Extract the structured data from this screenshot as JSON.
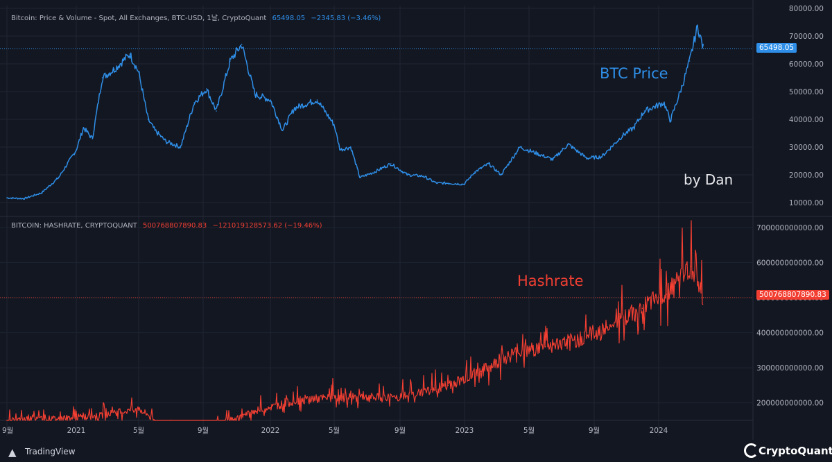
{
  "colors": {
    "background": "#131722",
    "btc": "#2f8fe8",
    "hashrate": "#f23f32",
    "grid": "#1f2433",
    "text": "#b2b5be"
  },
  "top_header": {
    "title": "Bitcoin: Price & Volume - Spot, All Exchanges, BTC-USD, 1날, CryptoQuant",
    "value": "65498.05",
    "change": "−2345.83 (−3.46%)"
  },
  "bottom_header": {
    "title": "BITCOIN: HASHRATE, CRYPTOQUANT",
    "value": "500768807890.83",
    "change": "−121019128573.62 (−19.46%)"
  },
  "annotations": {
    "btc_label": "BTC Price",
    "hashrate_label": "Hashrate",
    "author": "by Dan"
  },
  "price_tags": {
    "btc": "65498.05",
    "hashrate": "500768807890.83"
  },
  "footer": {
    "left_brand": "TradingView",
    "right_brand": "CryptoQuant"
  },
  "chart_data": [
    {
      "type": "line",
      "name": "BTC Price",
      "x_axis": [
        "9월",
        "2021",
        "5월",
        "9월",
        "2022",
        "5월",
        "9월",
        "2023",
        "5월",
        "9월",
        "2024"
      ],
      "y_ticks": [
        "80000.00",
        "70000.00",
        "60000.00",
        "50000.00",
        "40000.00",
        "30000.00",
        "20000.00",
        "10000.00"
      ],
      "ylim": [
        6000,
        81000
      ],
      "x": [
        "2020-09-01",
        "2020-10-01",
        "2020-11-01",
        "2020-12-01",
        "2021-01-01",
        "2021-01-15",
        "2021-02-01",
        "2021-02-20",
        "2021-03-15",
        "2021-04-14",
        "2021-05-01",
        "2021-05-19",
        "2021-06-01",
        "2021-06-22",
        "2021-07-20",
        "2021-08-15",
        "2021-09-07",
        "2021-09-25",
        "2021-10-20",
        "2021-11-10",
        "2021-12-04",
        "2022-01-01",
        "2022-01-24",
        "2022-02-15",
        "2022-03-30",
        "2022-05-01",
        "2022-05-12",
        "2022-06-01",
        "2022-06-18",
        "2022-07-15",
        "2022-08-15",
        "2022-09-15",
        "2022-10-15",
        "2022-11-09",
        "2022-12-01",
        "2022-12-31",
        "2023-01-20",
        "2023-02-15",
        "2023-03-10",
        "2023-04-14",
        "2023-06-15",
        "2023-07-14",
        "2023-08-18",
        "2023-09-15",
        "2023-10-24",
        "2023-11-15",
        "2023-12-05",
        "2024-01-11",
        "2024-01-23",
        "2024-02-14",
        "2024-02-28",
        "2024-03-14",
        "2024-03-25"
      ],
      "values": [
        11700,
        11400,
        13500,
        19000,
        29000,
        37000,
        33000,
        55000,
        58000,
        63500,
        57000,
        40000,
        36000,
        32000,
        30000,
        46000,
        51000,
        43000,
        61000,
        67000,
        49000,
        47000,
        36000,
        44000,
        47000,
        38000,
        29000,
        30000,
        19000,
        21000,
        24000,
        20000,
        19500,
        17000,
        17000,
        16600,
        21000,
        24000,
        20000,
        30000,
        25500,
        31000,
        26000,
        26500,
        34000,
        37000,
        43000,
        46000,
        39500,
        52000,
        61000,
        73500,
        65500
      ]
    },
    {
      "type": "line",
      "name": "Hashrate",
      "x_axis": [
        "9월",
        "2021",
        "5월",
        "9월",
        "2022",
        "5월",
        "9월",
        "2023",
        "5월",
        "9월",
        "2024"
      ],
      "y_ticks": [
        "700000000000.00",
        "600000000000.00",
        "500000000000.00",
        "400000000000.00",
        "300000000000.00",
        "200000000000.00"
      ],
      "ylim": [
        150000000000,
        720000000000
      ],
      "x": [
        "2020-09-01",
        "2020-12-01",
        "2021-03-01",
        "2021-05-01",
        "2021-06-01",
        "2021-07-01",
        "2021-09-01",
        "2021-12-01",
        "2022-03-01",
        "2022-06-01",
        "2022-09-01",
        "2022-12-01",
        "2023-02-01",
        "2023-04-01",
        "2023-06-01",
        "2023-08-01",
        "2023-10-01",
        "2023-12-01",
        "2024-01-15",
        "2024-03-01",
        "2024-03-25"
      ],
      "values": [
        150000000000,
        155000000000,
        165000000000,
        185000000000,
        150000000000,
        95000000000,
        115000000000,
        175000000000,
        210000000000,
        215000000000,
        215000000000,
        250000000000,
        290000000000,
        340000000000,
        360000000000,
        380000000000,
        420000000000,
        470000000000,
        510000000000,
        590000000000,
        500000000000
      ]
    }
  ]
}
